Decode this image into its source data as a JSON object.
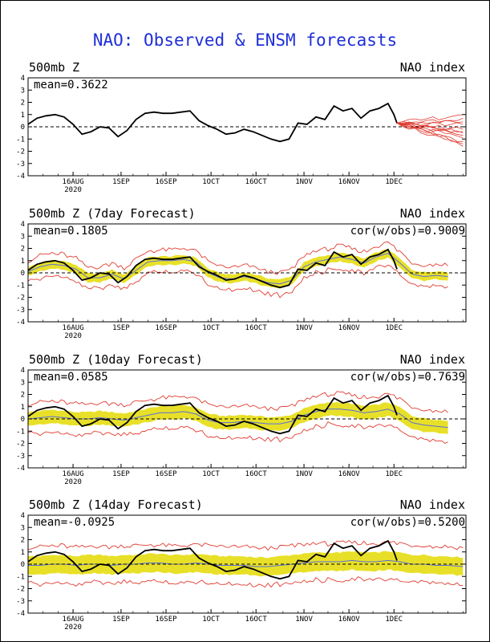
{
  "title": "NAO: Observed & ENSM forecasts",
  "x_ticks": [
    {
      "label": "16AUG",
      "sub": "2020",
      "day": 15
    },
    {
      "label": "1SEP",
      "day": 31
    },
    {
      "label": "16SEP",
      "day": 46
    },
    {
      "label": "1OCT",
      "day": 61
    },
    {
      "label": "16OCT",
      "day": 76
    },
    {
      "label": "1NOV",
      "day": 92
    },
    {
      "label": "16NOV",
      "day": 107
    },
    {
      "label": "1DEC",
      "day": 122
    }
  ],
  "y_ticks": [
    4,
    3,
    2,
    1,
    0,
    -1,
    -2,
    -3,
    -4
  ],
  "colors": {
    "observed": "#000000",
    "ensemble": "#e03c31",
    "spread": "#e8e028",
    "mean": "#5a6fd6",
    "title": "#1f2fd8"
  },
  "chart_data": [
    {
      "type": "line",
      "title": "500mb Z",
      "right_title": "NAO index",
      "mean_label": "mean=0.3622",
      "cor_label": "",
      "xlim": [
        0,
        146
      ],
      "ylim": [
        -4,
        4
      ],
      "zero_line": "dashed",
      "series": [
        {
          "name": "observed",
          "x": [
            0,
            3,
            6,
            9,
            12,
            15,
            18,
            21,
            24,
            27,
            30,
            33,
            36,
            39,
            42,
            45,
            48,
            51,
            54,
            57,
            60,
            63,
            66,
            69,
            72,
            75,
            78,
            81,
            84,
            87,
            90,
            93,
            96,
            99,
            102,
            105,
            108,
            111,
            114,
            117,
            120,
            122,
            123
          ],
          "y": [
            0.2,
            0.7,
            0.9,
            1.0,
            0.8,
            0.2,
            -0.6,
            -0.4,
            0.0,
            -0.1,
            -0.8,
            -0.3,
            0.6,
            1.1,
            1.2,
            1.1,
            1.1,
            1.2,
            1.3,
            0.5,
            0.1,
            -0.2,
            -0.6,
            -0.5,
            -0.2,
            -0.4,
            -0.7,
            -1.0,
            -1.2,
            -1.0,
            0.3,
            0.2,
            0.8,
            0.6,
            1.7,
            1.3,
            1.5,
            0.7,
            1.3,
            1.5,
            1.9,
            1.0,
            0.3
          ]
        },
        {
          "name": "ensemble_forecast",
          "x_start": 123,
          "x_end": 145,
          "count": 12,
          "start": 0.3,
          "end": [
            -1.6,
            -0.9,
            -0.5,
            0.2,
            0.7,
            1.0,
            -0.2,
            -0.7,
            -1.2,
            0.4,
            -0.4,
            -1.4
          ]
        }
      ]
    },
    {
      "type": "line",
      "title": "500mb Z (7day Forecast)",
      "right_title": "NAO index",
      "mean_label": "mean=0.1805",
      "cor_label": "cor(w/obs)=0.9009",
      "xlim": [
        0,
        146
      ],
      "ylim": [
        -4,
        4
      ],
      "zero_line": "dashed",
      "series": [
        {
          "name": "observed",
          "x": [
            0,
            3,
            6,
            9,
            12,
            15,
            18,
            21,
            24,
            27,
            30,
            33,
            36,
            39,
            42,
            45,
            48,
            51,
            54,
            57,
            60,
            63,
            66,
            69,
            72,
            75,
            78,
            81,
            84,
            87,
            90,
            93,
            96,
            99,
            102,
            105,
            108,
            111,
            114,
            117,
            120,
            122,
            123
          ],
          "y": [
            0.2,
            0.7,
            0.9,
            1.0,
            0.8,
            0.2,
            -0.6,
            -0.4,
            0.0,
            -0.1,
            -0.8,
            -0.3,
            0.6,
            1.1,
            1.2,
            1.1,
            1.1,
            1.2,
            1.3,
            0.5,
            0.1,
            -0.2,
            -0.6,
            -0.5,
            -0.2,
            -0.4,
            -0.7,
            -1.0,
            -1.2,
            -1.0,
            0.3,
            0.2,
            0.8,
            0.6,
            1.7,
            1.3,
            1.5,
            0.7,
            1.3,
            1.5,
            1.9,
            1.0,
            0.3
          ]
        },
        {
          "name": "ensemble_mean",
          "x": [
            0,
            4,
            8,
            12,
            16,
            20,
            24,
            28,
            32,
            36,
            40,
            44,
            48,
            52,
            56,
            60,
            64,
            68,
            72,
            76,
            80,
            84,
            88,
            92,
            96,
            100,
            104,
            108,
            112,
            116,
            120,
            124,
            128,
            132,
            136,
            140
          ],
          "y": [
            0.1,
            0.5,
            0.7,
            0.6,
            0.3,
            -0.4,
            -0.4,
            -0.1,
            -0.5,
            0.2,
            0.9,
            1.0,
            1.0,
            1.1,
            0.9,
            0.0,
            -0.4,
            -0.5,
            -0.3,
            -0.5,
            -0.8,
            -0.9,
            -0.6,
            0.5,
            0.9,
            1.1,
            1.3,
            1.1,
            0.8,
            1.3,
            1.6,
            0.8,
            -0.1,
            -0.3,
            -0.2,
            -0.3
          ]
        },
        {
          "name": "spread_halfwidth_inner",
          "value": 0.35
        },
        {
          "name": "spread_halfwidth_outer",
          "value": 0.9
        }
      ]
    },
    {
      "type": "line",
      "title": "500mb Z (10day Forecast)",
      "right_title": "NAO index",
      "mean_label": "mean=0.0585",
      "cor_label": "cor(w/obs)=0.7639",
      "xlim": [
        0,
        146
      ],
      "ylim": [
        -4,
        4
      ],
      "zero_line": "dashed",
      "series": [
        {
          "name": "observed",
          "x": [
            0,
            3,
            6,
            9,
            12,
            15,
            18,
            21,
            24,
            27,
            30,
            33,
            36,
            39,
            42,
            45,
            48,
            51,
            54,
            57,
            60,
            63,
            66,
            69,
            72,
            75,
            78,
            81,
            84,
            87,
            90,
            93,
            96,
            99,
            102,
            105,
            108,
            111,
            114,
            117,
            120,
            122,
            123
          ],
          "y": [
            0.2,
            0.7,
            0.9,
            1.0,
            0.8,
            0.2,
            -0.6,
            -0.4,
            0.0,
            -0.1,
            -0.8,
            -0.3,
            0.6,
            1.1,
            1.2,
            1.1,
            1.1,
            1.2,
            1.3,
            0.5,
            0.1,
            -0.2,
            -0.6,
            -0.5,
            -0.2,
            -0.4,
            -0.7,
            -1.0,
            -1.2,
            -1.0,
            0.3,
            0.2,
            0.8,
            0.6,
            1.7,
            1.3,
            1.5,
            0.7,
            1.3,
            1.5,
            1.9,
            1.0,
            0.3
          ]
        },
        {
          "name": "ensemble_mean",
          "x": [
            0,
            4,
            8,
            12,
            16,
            20,
            24,
            28,
            32,
            36,
            40,
            44,
            48,
            52,
            56,
            60,
            64,
            68,
            72,
            76,
            80,
            84,
            88,
            92,
            96,
            100,
            104,
            108,
            112,
            116,
            120,
            124,
            128,
            132,
            136,
            140
          ],
          "y": [
            0.0,
            0.1,
            0.2,
            0.1,
            0.0,
            0.0,
            0.1,
            0.0,
            -0.1,
            0.1,
            0.3,
            0.5,
            0.5,
            0.6,
            0.4,
            -0.1,
            -0.3,
            -0.3,
            -0.2,
            -0.3,
            -0.4,
            -0.4,
            -0.2,
            0.3,
            0.6,
            0.8,
            0.8,
            0.7,
            0.5,
            0.6,
            0.8,
            0.4,
            -0.3,
            -0.5,
            -0.6,
            -0.7
          ]
        },
        {
          "name": "spread_halfwidth_inner",
          "value": 0.55
        },
        {
          "name": "spread_halfwidth_outer",
          "value": 1.25
        }
      ]
    },
    {
      "type": "line",
      "title": "500mb Z (14day Forecast)",
      "right_title": "NAO index",
      "mean_label": "mean=-0.0925",
      "cor_label": "cor(w/obs)=0.5200",
      "xlim": [
        0,
        146
      ],
      "ylim": [
        -4,
        4
      ],
      "zero_line": "dashed",
      "series": [
        {
          "name": "observed",
          "x": [
            0,
            3,
            6,
            9,
            12,
            15,
            18,
            21,
            24,
            27,
            30,
            33,
            36,
            39,
            42,
            45,
            48,
            51,
            54,
            57,
            60,
            63,
            66,
            69,
            72,
            75,
            78,
            81,
            84,
            87,
            90,
            93,
            96,
            99,
            102,
            105,
            108,
            111,
            114,
            117,
            120,
            122,
            123
          ],
          "y": [
            0.2,
            0.7,
            0.9,
            1.0,
            0.8,
            0.2,
            -0.6,
            -0.4,
            0.0,
            -0.1,
            -0.8,
            -0.3,
            0.6,
            1.1,
            1.2,
            1.1,
            1.1,
            1.2,
            1.3,
            0.5,
            0.1,
            -0.2,
            -0.6,
            -0.5,
            -0.2,
            -0.4,
            -0.7,
            -1.0,
            -1.2,
            -1.0,
            0.3,
            0.2,
            0.8,
            0.6,
            1.7,
            1.3,
            1.5,
            0.7,
            1.3,
            1.5,
            1.9,
            1.0,
            0.3
          ]
        },
        {
          "name": "ensemble_mean",
          "x": [
            0,
            4,
            8,
            12,
            16,
            20,
            24,
            28,
            32,
            36,
            40,
            44,
            48,
            52,
            56,
            60,
            64,
            68,
            72,
            76,
            80,
            84,
            88,
            92,
            96,
            100,
            104,
            108,
            112,
            116,
            120,
            124,
            128,
            132,
            136,
            140,
            145
          ],
          "y": [
            -0.1,
            -0.1,
            0.0,
            0.0,
            -0.1,
            0.0,
            0.0,
            -0.1,
            0.0,
            0.0,
            0.1,
            0.1,
            0.0,
            0.0,
            0.1,
            0.0,
            -0.1,
            -0.1,
            -0.1,
            -0.2,
            -0.2,
            -0.1,
            0.0,
            0.1,
            0.2,
            0.2,
            0.2,
            0.3,
            0.2,
            0.2,
            0.3,
            0.2,
            0.0,
            0.0,
            -0.1,
            -0.1,
            -0.2
          ]
        },
        {
          "name": "spread_halfwidth_inner",
          "value": 0.75
        },
        {
          "name": "spread_halfwidth_outer",
          "value": 1.5
        }
      ]
    }
  ]
}
